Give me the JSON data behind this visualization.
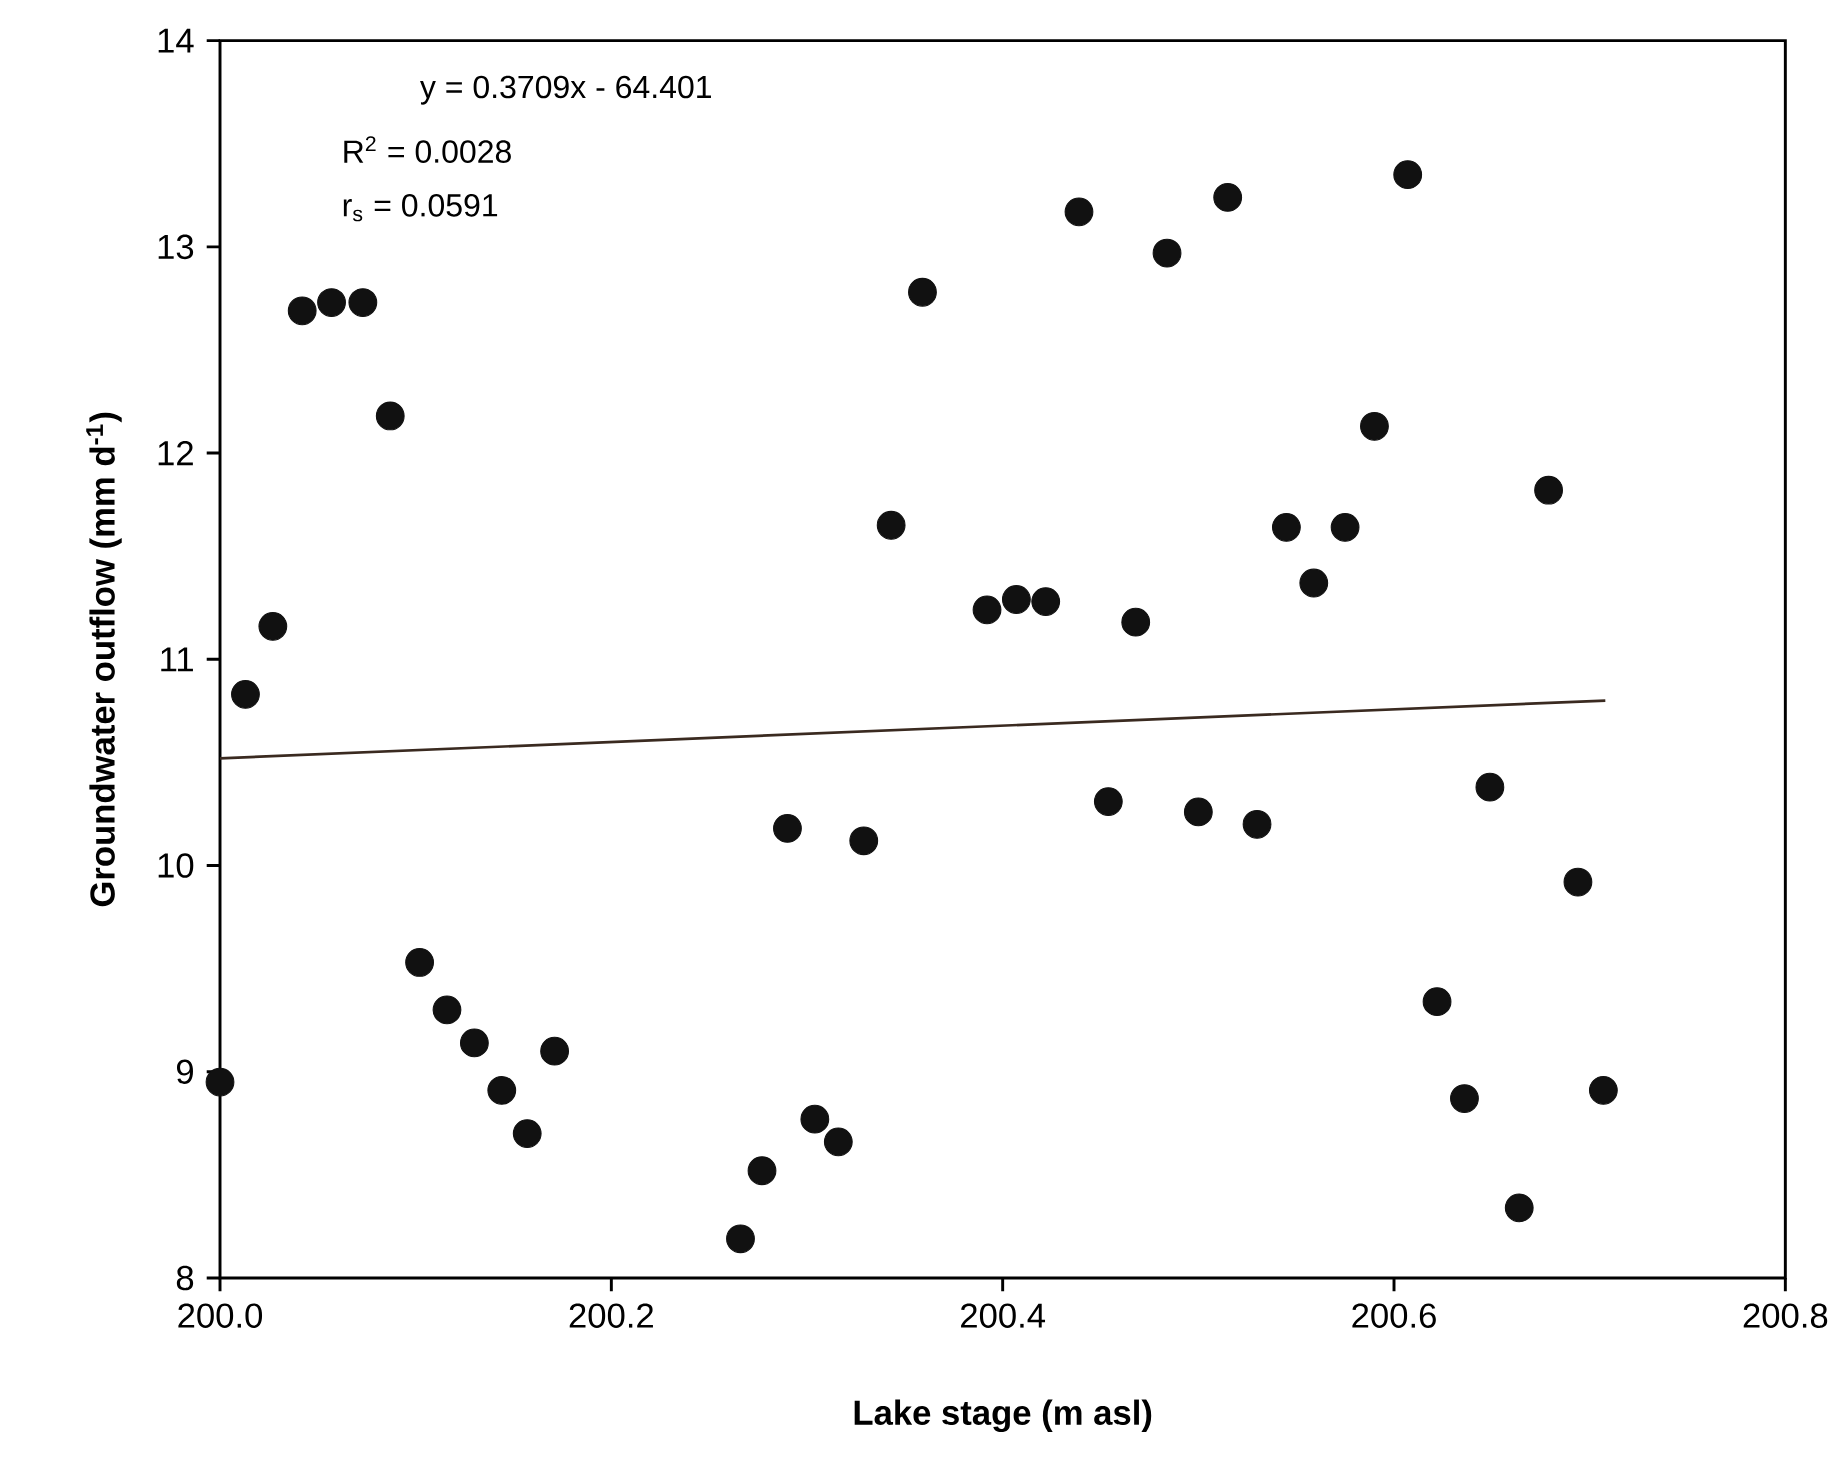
{
  "chart_data": {
    "type": "scatter",
    "xlabel": "Lake stage (m asl)",
    "ylabel": "Groundwater outflow (mm d$^{-1}$)",
    "xlim": [
      200.0,
      200.8
    ],
    "ylim": [
      8,
      14
    ],
    "xticks": [
      {
        "value": 200.0,
        "label": "200.0"
      },
      200.2,
      200.4,
      200.6,
      200.8
    ],
    "yticks": [
      8,
      9,
      10,
      11,
      12,
      13,
      14
    ],
    "grid": false,
    "marker": "circle",
    "annotations": [
      "y = 0.3709x - 64.401",
      "R$^{2}$ = 0.0028",
      "r$_{s}$ = 0.0591"
    ],
    "series": [
      {
        "color": "#111111",
        "x": [
          200.0,
          200.013,
          200.027,
          200.042,
          200.057,
          200.073,
          200.087,
          200.102,
          200.116,
          200.13,
          200.144,
          200.157,
          200.171,
          200.266,
          200.277,
          200.29,
          200.304,
          200.316,
          200.329,
          200.343,
          200.359,
          200.392,
          200.407,
          200.422,
          200.439,
          200.454,
          200.468,
          200.484,
          200.5,
          200.515,
          200.53,
          200.545,
          200.559,
          200.575,
          200.59,
          200.607,
          200.622,
          200.636,
          200.649,
          200.664,
          200.679,
          200.694,
          200.707
        ],
        "values": [
          8.95,
          10.83,
          11.16,
          12.69,
          12.73,
          12.73,
          12.18,
          9.53,
          9.3,
          9.14,
          8.91,
          8.7,
          9.1,
          8.19,
          8.52,
          10.18,
          8.77,
          8.66,
          10.12,
          11.65,
          12.78,
          11.24,
          11.29,
          11.28,
          13.17,
          10.31,
          11.18,
          12.97,
          10.26,
          13.24,
          10.2,
          11.64,
          11.37,
          11.64,
          12.13,
          13.35,
          9.34,
          8.87,
          10.38,
          8.34,
          11.82,
          9.92,
          8.91
        ]
      },
      {
        "type": "line",
        "color": "#3a2a20",
        "marker": "none",
        "x": [
          200.0,
          200.708
        ],
        "values": [
          10.52,
          10.8
        ]
      }
    ]
  }
}
